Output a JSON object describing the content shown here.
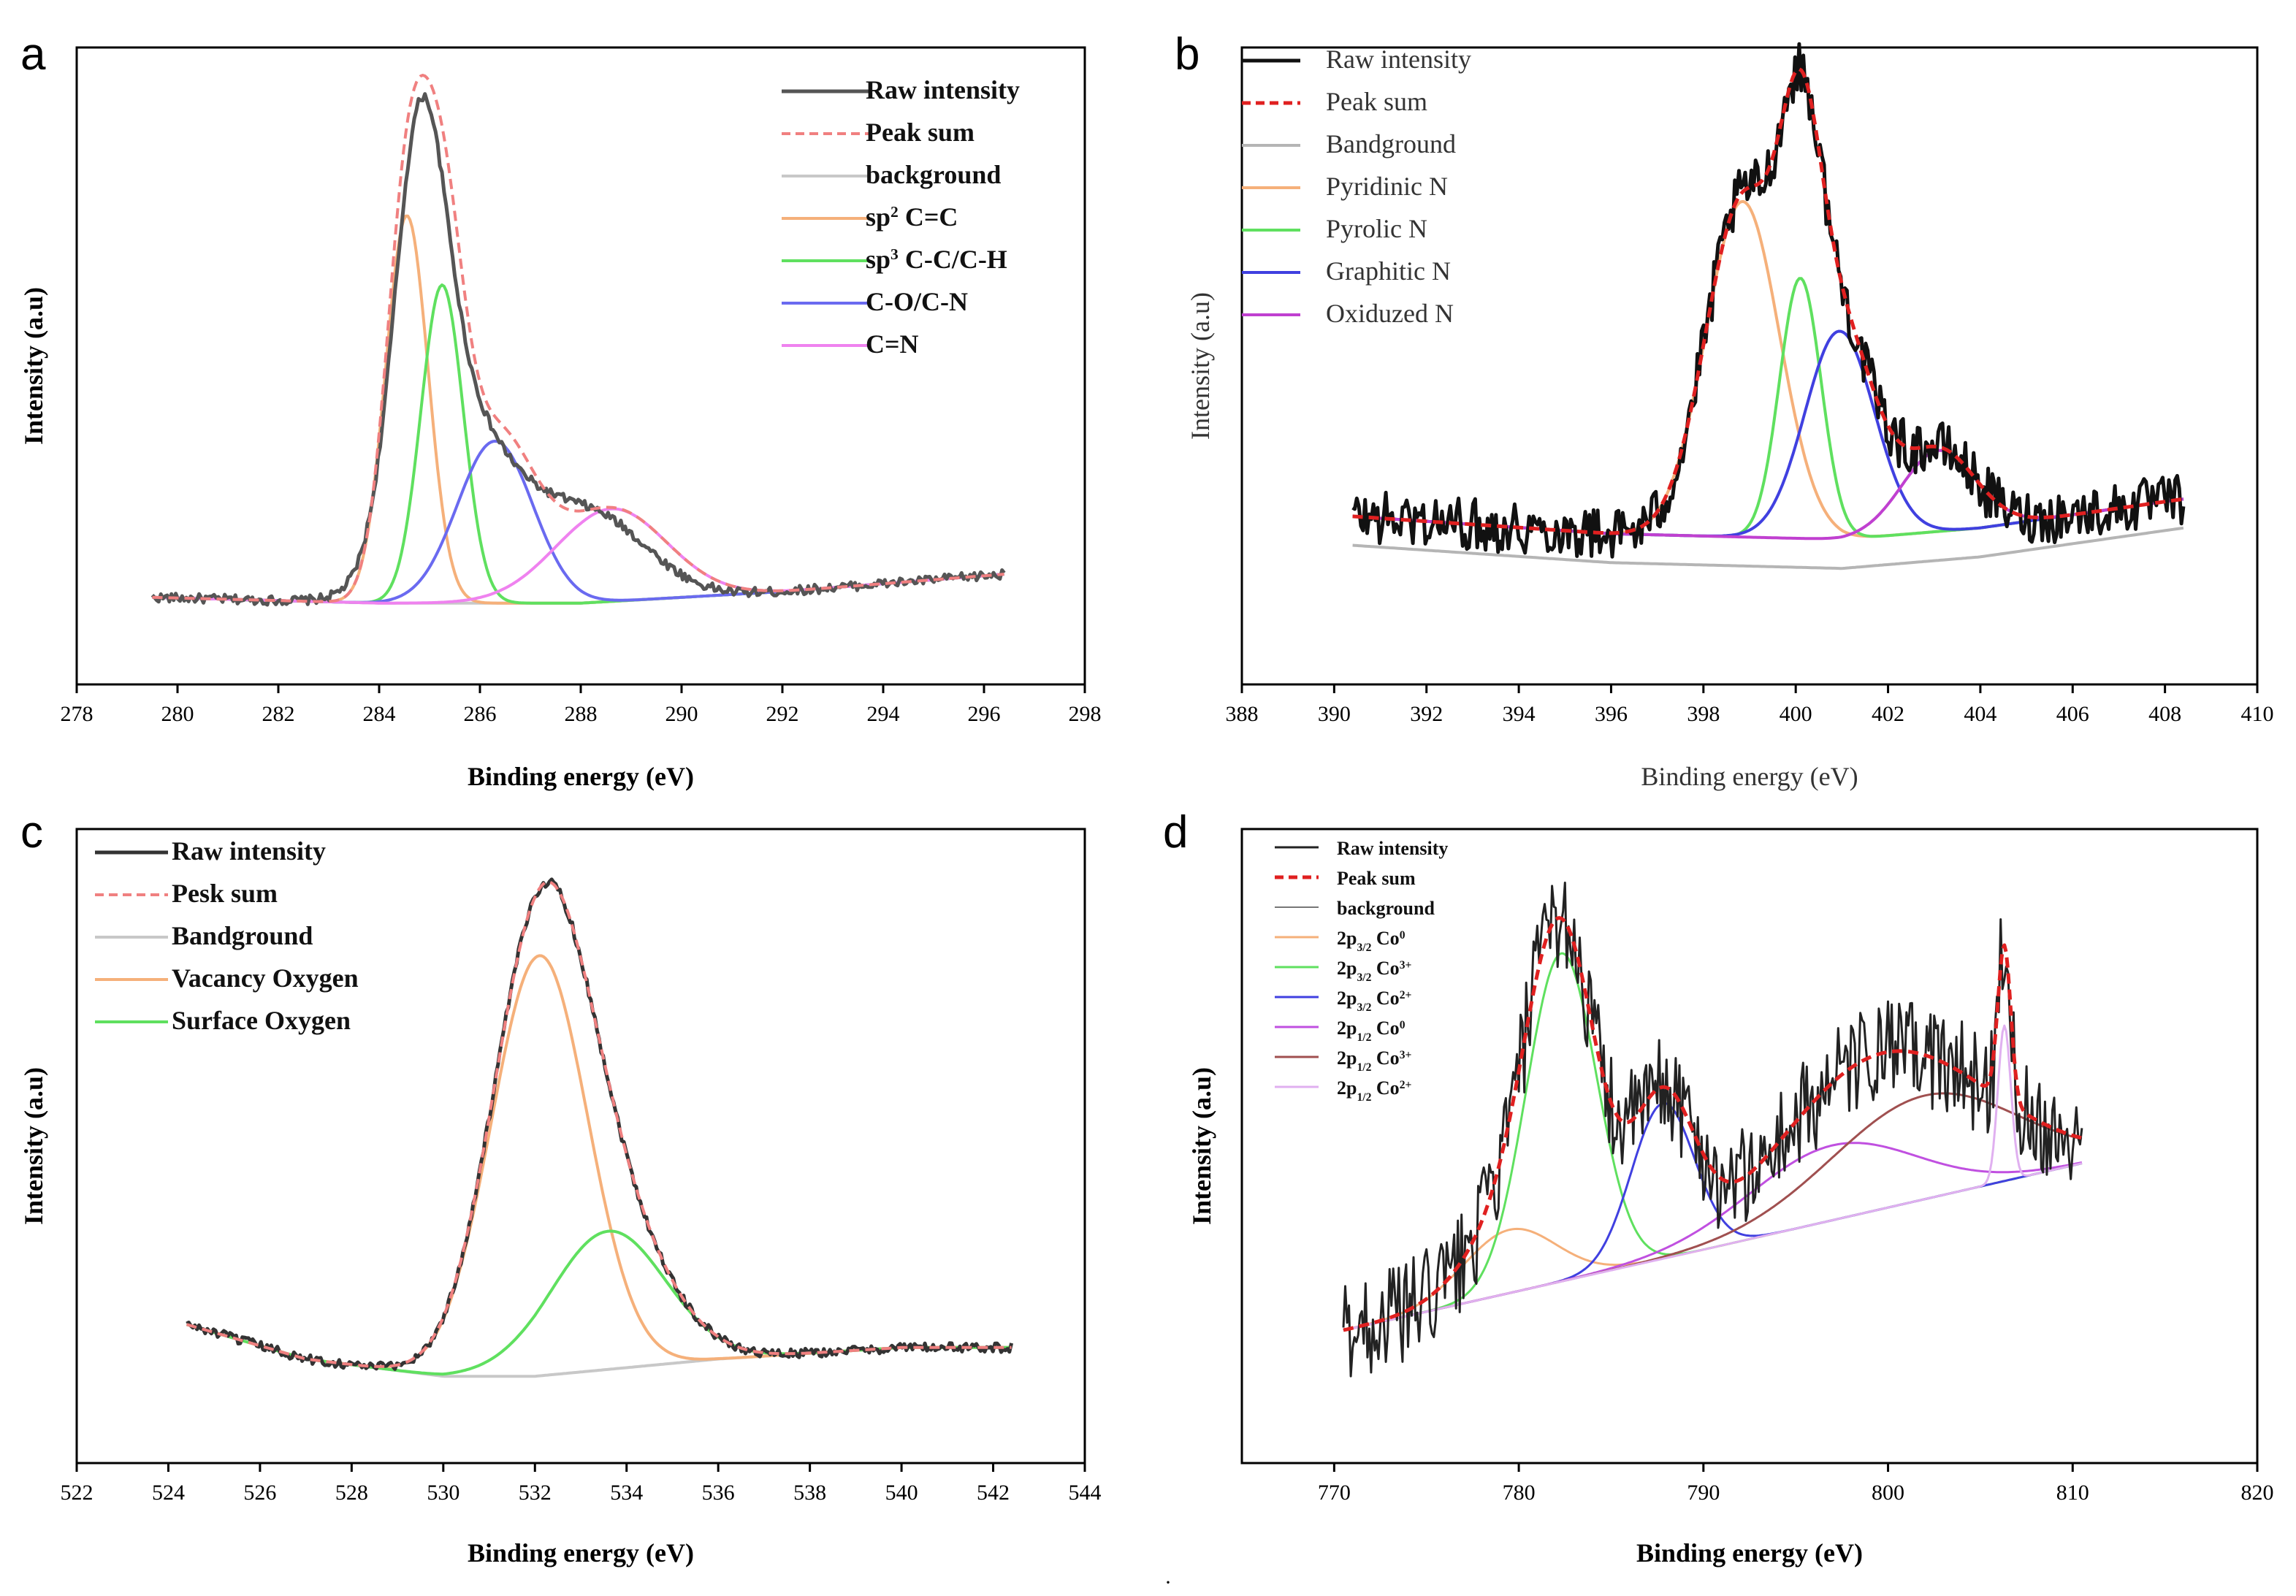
{
  "chart_data": [
    {
      "id": "a",
      "type": "line",
      "panel_label": "a",
      "xlabel": "Binding energy (eV)",
      "ylabel": "Intensity (a.u)",
      "xlim": [
        278,
        298
      ],
      "xticks": [
        278,
        280,
        282,
        284,
        286,
        288,
        290,
        292,
        294,
        296,
        298
      ],
      "ylim": [
        0,
        1
      ],
      "xrange": [
        279.5,
        296.4
      ],
      "baseline": [
        [
          279.5,
          0.1
        ],
        [
          284,
          0.09
        ],
        [
          288,
          0.09
        ],
        [
          292,
          0.11
        ],
        [
          296.4,
          0.14
        ]
      ],
      "raw_peaks": [
        [
          284.8,
          0.62,
          0.5
        ],
        [
          285.4,
          0.28,
          0.9
        ],
        [
          287.0,
          0.13,
          1.2
        ],
        [
          288.6,
          0.09,
          1.0
        ]
      ],
      "series": [
        {
          "name": "Raw intensity",
          "kind": "raw",
          "color": "#555555",
          "style": "solid",
          "width": 5,
          "legend_text": "Raw intensity"
        },
        {
          "name": "Peak sum",
          "kind": "sum",
          "color": "#f08080",
          "style": "dashed",
          "width": 4,
          "legend_text": "Peak sum"
        },
        {
          "name": "background",
          "kind": "background",
          "color": "#c8c8c8",
          "style": "solid",
          "width": 4,
          "legend_text": "background"
        },
        {
          "name": "sp2 C=C",
          "kind": "peak",
          "center": 284.55,
          "height": 0.67,
          "sigma": 0.42,
          "color": "#f5b07a",
          "style": "solid",
          "width": 4,
          "legend_text": "sp",
          "legend_sup": "2",
          "legend_rest": " C=C"
        },
        {
          "name": "sp3 C-C/C-H",
          "kind": "peak",
          "center": 285.25,
          "height": 0.55,
          "sigma": 0.42,
          "color": "#5fe05f",
          "style": "solid",
          "width": 4,
          "legend_text": "sp",
          "legend_sup": "3",
          "legend_rest": " C-C/C-H"
        },
        {
          "name": "C-O/C-N",
          "kind": "peak",
          "center": 286.3,
          "height": 0.28,
          "sigma": 0.75,
          "color": "#6a6af0",
          "style": "solid",
          "width": 4,
          "legend_text": "C-O/C-N"
        },
        {
          "name": "C=N",
          "kind": "peak",
          "center": 288.6,
          "height": 0.16,
          "sigma": 1.1,
          "color": "#ef82ef",
          "style": "solid",
          "width": 4,
          "legend_text": "C=N"
        }
      ]
    },
    {
      "id": "b",
      "type": "line",
      "panel_label": "b",
      "xlabel": "Binding energy (eV)",
      "ylabel": "Intensity (a.u)",
      "xlim": [
        388,
        410
      ],
      "xticks": [
        388,
        390,
        392,
        394,
        396,
        398,
        400,
        402,
        404,
        406,
        408,
        410
      ],
      "ylim": [
        0,
        1
      ],
      "xrange": [
        390.4,
        408.4
      ],
      "baseline": [
        [
          390.4,
          0.24
        ],
        [
          396,
          0.21
        ],
        [
          401,
          0.2
        ],
        [
          404,
          0.22
        ],
        [
          408.4,
          0.27
        ]
      ],
      "noise_amp": 0.045,
      "series": [
        {
          "name": "Raw intensity",
          "kind": "raw",
          "color": "#111111",
          "style": "solid",
          "width": 5,
          "legend_text": "Raw intensity"
        },
        {
          "name": "Peak sum",
          "kind": "sum",
          "color": "#e02020",
          "style": "dashed",
          "width": 5,
          "legend_text": "Peak sum"
        },
        {
          "name": "Bandground",
          "kind": "background",
          "offset": -0.05,
          "color": "#b5b5b5",
          "style": "solid",
          "width": 4,
          "legend_text": "Bandground"
        },
        {
          "name": "Pyridinic N",
          "kind": "peak",
          "center": 398.85,
          "height": 0.58,
          "sigma": 0.8,
          "color": "#f5b07a",
          "style": "solid",
          "width": 4,
          "legend_text": "Pyridinic N"
        },
        {
          "name": "Pyrolic N",
          "kind": "peak",
          "center": 400.1,
          "height": 0.45,
          "sigma": 0.45,
          "color": "#5fe05f",
          "style": "solid",
          "width": 4,
          "legend_text": "Pyrolic N"
        },
        {
          "name": "Graphitic N",
          "kind": "peak",
          "center": 400.95,
          "height": 0.36,
          "sigma": 0.75,
          "color": "#4040e0",
          "style": "solid",
          "width": 4,
          "legend_text": "Graphitic N"
        },
        {
          "name": "Oxiduzed N",
          "kind": "peak",
          "center": 403.1,
          "height": 0.14,
          "sigma": 0.8,
          "color": "#c040d0",
          "style": "solid",
          "width": 4,
          "legend_text": "Oxiduzed N"
        }
      ]
    },
    {
      "id": "c",
      "type": "line",
      "panel_label": "c",
      "xlabel": "Binding energy (eV)",
      "ylabel": "Intensity (a.u)",
      "xlim": [
        522,
        544
      ],
      "xticks": [
        522,
        524,
        526,
        528,
        530,
        532,
        534,
        536,
        538,
        540,
        542,
        544
      ],
      "ylim": [
        0,
        1
      ],
      "xrange": [
        524.4,
        542.4
      ],
      "baseline": [
        [
          524.4,
          0.19
        ],
        [
          527,
          0.13
        ],
        [
          530,
          0.1
        ],
        [
          532,
          0.1
        ],
        [
          536,
          0.13
        ],
        [
          540,
          0.15
        ],
        [
          542.4,
          0.15
        ]
      ],
      "series": [
        {
          "name": "Raw intensity",
          "kind": "raw",
          "color": "#333333",
          "style": "solid",
          "width": 5,
          "legend_text": "Raw intensity"
        },
        {
          "name": "Pesk sum",
          "kind": "sum",
          "color": "#f08080",
          "style": "dashed",
          "width": 4,
          "legend_text": "Pesk sum"
        },
        {
          "name": "Bandground",
          "kind": "background",
          "color": "#c8c8c8",
          "style": "solid",
          "width": 4,
          "legend_text": "Bandground"
        },
        {
          "name": "Vacancy Oxygen",
          "kind": "peak",
          "center": 532.1,
          "height": 0.73,
          "sigma": 1.05,
          "color": "#f5b07a",
          "style": "solid",
          "width": 4,
          "legend_text": "Vacancy Oxygen"
        },
        {
          "name": "Surface Oxygen",
          "kind": "peak",
          "center": 533.6,
          "height": 0.24,
          "sigma": 1.25,
          "color": "#5fe05f",
          "style": "solid",
          "width": 4,
          "legend_text": "Surface Oxygen"
        }
      ]
    },
    {
      "id": "d",
      "type": "line",
      "panel_label": "d",
      "xlabel": "Binding energy (eV)",
      "ylabel": "Intensity (a.u)",
      "xlim": [
        765,
        820
      ],
      "xticks": [
        770,
        780,
        790,
        800,
        810,
        820
      ],
      "ylim": [
        0,
        1
      ],
      "xrange": [
        770.5,
        810.5
      ],
      "baseline": [
        [
          770.5,
          0.18
        ],
        [
          790,
          0.32
        ],
        [
          810.5,
          0.47
        ]
      ],
      "noise_amp": 0.09,
      "series": [
        {
          "name": "Raw intensity",
          "kind": "raw",
          "color": "#222222",
          "style": "solid",
          "width": 3,
          "legend_text": "Raw intensity"
        },
        {
          "name": "Peak sum",
          "kind": "sum",
          "color": "#e02020",
          "style": "dashed",
          "width": 5,
          "legend_text": "Peak sum"
        },
        {
          "name": "background",
          "kind": "background",
          "color": "#777777",
          "style": "solid",
          "width": 2,
          "legend_text": "background"
        },
        {
          "name": "2p3/2 Co0",
          "kind": "peak",
          "center": 779.5,
          "height": 0.11,
          "sigma": 2.5,
          "color": "#f5b07a",
          "style": "solid",
          "width": 3,
          "legend_text": "2p",
          "legend_sub": "3/2",
          "legend_rest": " Co",
          "legend_sup": "0"
        },
        {
          "name": "2p3/2 Co3+",
          "kind": "peak",
          "center": 782.3,
          "height": 0.57,
          "sigma": 1.9,
          "color": "#5fe05f",
          "style": "solid",
          "width": 3,
          "legend_text": "2p",
          "legend_sub": "3/2",
          "legend_rest": " Co",
          "legend_sup": "3+"
        },
        {
          "name": "2p3/2 Co2+",
          "kind": "peak",
          "center": 787.8,
          "height": 0.27,
          "sigma": 1.7,
          "color": "#4040e0",
          "style": "solid",
          "width": 3,
          "legend_text": "2p",
          "legend_sub": "3/2",
          "legend_rest": " Co",
          "legend_sup": "2+"
        },
        {
          "name": "2p1/2 Co0",
          "kind": "peak",
          "center": 797.0,
          "height": 0.13,
          "sigma": 4.5,
          "color": "#c050e0",
          "style": "solid",
          "width": 3,
          "legend_text": "2p",
          "legend_sub": "1/2",
          "legend_rest": " Co",
          "legend_sup": "0"
        },
        {
          "name": "2p1/2 Co3+",
          "kind": "peak",
          "center": 802.0,
          "height": 0.18,
          "sigma": 5.0,
          "color": "#a05050",
          "style": "solid",
          "width": 3,
          "legend_text": "2p",
          "legend_sub": "1/2",
          "legend_rest": " Co",
          "legend_sup": "3+"
        },
        {
          "name": "2p1/2 Co2+",
          "kind": "peak",
          "center": 806.3,
          "height": 0.27,
          "sigma": 0.35,
          "color": "#e0b0f0",
          "style": "solid",
          "width": 3,
          "legend_text": "2p",
          "legend_sub": "1/2",
          "legend_rest": " Co",
          "legend_sup": "2+"
        }
      ]
    }
  ],
  "footer_mark": "·",
  "colors": {
    "frame": "#000000",
    "background": "#ffffff"
  }
}
